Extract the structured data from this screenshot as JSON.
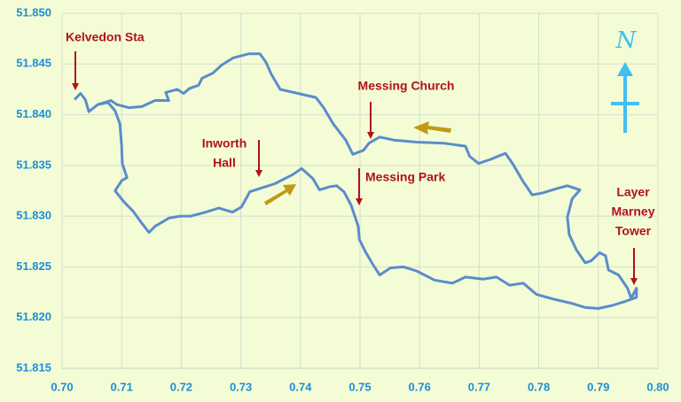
{
  "chart_data": {
    "type": "line",
    "color": "#5b8ccb",
    "grid": true,
    "compass": "N",
    "xlim": [
      0.7,
      0.8
    ],
    "xticks": [
      {
        "value": 0.7,
        "label": "0.70"
      },
      0.71,
      0.72,
      0.73,
      0.74,
      0.75,
      0.76,
      0.77,
      0.78,
      0.79,
      {
        "value": 0.8,
        "label": "0.80"
      }
    ],
    "ylim": [
      51.815,
      51.85
    ],
    "yticks": [
      51.815,
      {
        "value": 51.82,
        "label": "51.820"
      },
      51.825,
      {
        "value": 51.83,
        "label": "51.830"
      },
      51.835,
      {
        "value": 51.84,
        "label": "51.840"
      },
      51.845,
      {
        "value": 51.85,
        "label": "51.850"
      }
    ],
    "annotations": [
      {
        "lines": [
          "Kelvedon Sta"
        ]
      },
      {
        "lines": [
          "Inworth",
          "Hall"
        ]
      },
      {
        "lines": [
          "Messing Church"
        ]
      },
      {
        "lines": [
          "Messing Park"
        ]
      },
      {
        "lines": [
          "Layer",
          "Marney",
          "Tower"
        ]
      }
    ],
    "x": [
      0.7021,
      0.7031,
      0.7039,
      0.7045,
      0.706,
      0.7082,
      0.7092,
      0.7112,
      0.7134,
      0.7156,
      0.7179,
      0.7174,
      0.7193,
      0.7204,
      0.7214,
      0.7229,
      0.7235,
      0.7253,
      0.7268,
      0.7287,
      0.7313,
      0.7332,
      0.7342,
      0.7351,
      0.7366,
      0.7396,
      0.7426,
      0.7439,
      0.7455,
      0.7476,
      0.7488,
      0.7506,
      0.7515,
      0.7533,
      0.7557,
      0.7595,
      0.764,
      0.7677,
      0.7684,
      0.7699,
      0.7719,
      0.7744,
      0.7756,
      0.7774,
      0.7789,
      0.7807,
      0.7829,
      0.7848,
      0.7869,
      0.7856,
      0.7848,
      0.7851,
      0.7863,
      0.7878,
      0.7888,
      0.7902,
      0.7912,
      0.7917,
      0.7934,
      0.7949,
      0.7955,
      0.7964,
      0.7964,
      0.7945,
      0.7923,
      0.79,
      0.7878,
      0.7856,
      0.7826,
      0.7796,
      0.7774,
      0.7751,
      0.7729,
      0.7707,
      0.7677,
      0.7655,
      0.7625,
      0.7595,
      0.7573,
      0.7551,
      0.7533,
      0.7521,
      0.751,
      0.7499,
      0.7497,
      0.7485,
      0.7473,
      0.7461,
      0.7449,
      0.7432,
      0.7421,
      0.7402,
      0.7387,
      0.7357,
      0.7315,
      0.7301,
      0.7286,
      0.7263,
      0.7241,
      0.7216,
      0.7198,
      0.7179,
      0.7156,
      0.7146,
      0.7134,
      0.7119,
      0.7104,
      0.7089,
      0.71,
      0.7109,
      0.7101,
      0.71,
      0.7097,
      0.7089,
      0.7077,
      0.706
    ],
    "values": [
      51.8415,
      51.8421,
      51.8415,
      51.8403,
      51.841,
      51.8414,
      51.841,
      51.8407,
      51.8408,
      51.8414,
      51.8414,
      51.8422,
      51.8425,
      51.8421,
      51.8426,
      51.8429,
      51.8436,
      51.8441,
      51.8449,
      51.8456,
      51.846,
      51.846,
      51.8452,
      51.844,
      51.8425,
      51.8421,
      51.8417,
      51.8407,
      51.8391,
      51.8375,
      51.8361,
      51.8365,
      51.8372,
      51.8378,
      51.8375,
      51.8373,
      51.8372,
      51.8369,
      51.8359,
      51.8352,
      51.8356,
      51.8362,
      51.8352,
      51.8334,
      51.8321,
      51.8323,
      51.8327,
      51.833,
      51.8326,
      51.8317,
      51.8299,
      51.8282,
      51.8267,
      51.8254,
      51.8256,
      51.8264,
      51.8261,
      51.8247,
      51.8242,
      51.8229,
      51.8219,
      51.8229,
      51.822,
      51.8216,
      51.8212,
      51.8209,
      51.821,
      51.8214,
      51.8218,
      51.8223,
      51.8234,
      51.8232,
      51.824,
      51.8238,
      51.824,
      51.8234,
      51.8237,
      51.8246,
      51.825,
      51.8249,
      51.8242,
      51.8253,
      51.8264,
      51.8277,
      51.829,
      51.8311,
      51.8324,
      51.833,
      51.8329,
      51.8326,
      51.8337,
      51.8347,
      51.8341,
      51.8332,
      51.8324,
      51.8309,
      51.8304,
      51.8308,
      51.8304,
      51.83,
      51.83,
      51.8298,
      51.829,
      51.8284,
      51.8293,
      51.8305,
      51.8314,
      51.8325,
      51.8335,
      51.8338,
      51.8352,
      51.8369,
      51.8391,
      51.8404,
      51.8412,
      51.841
    ]
  }
}
